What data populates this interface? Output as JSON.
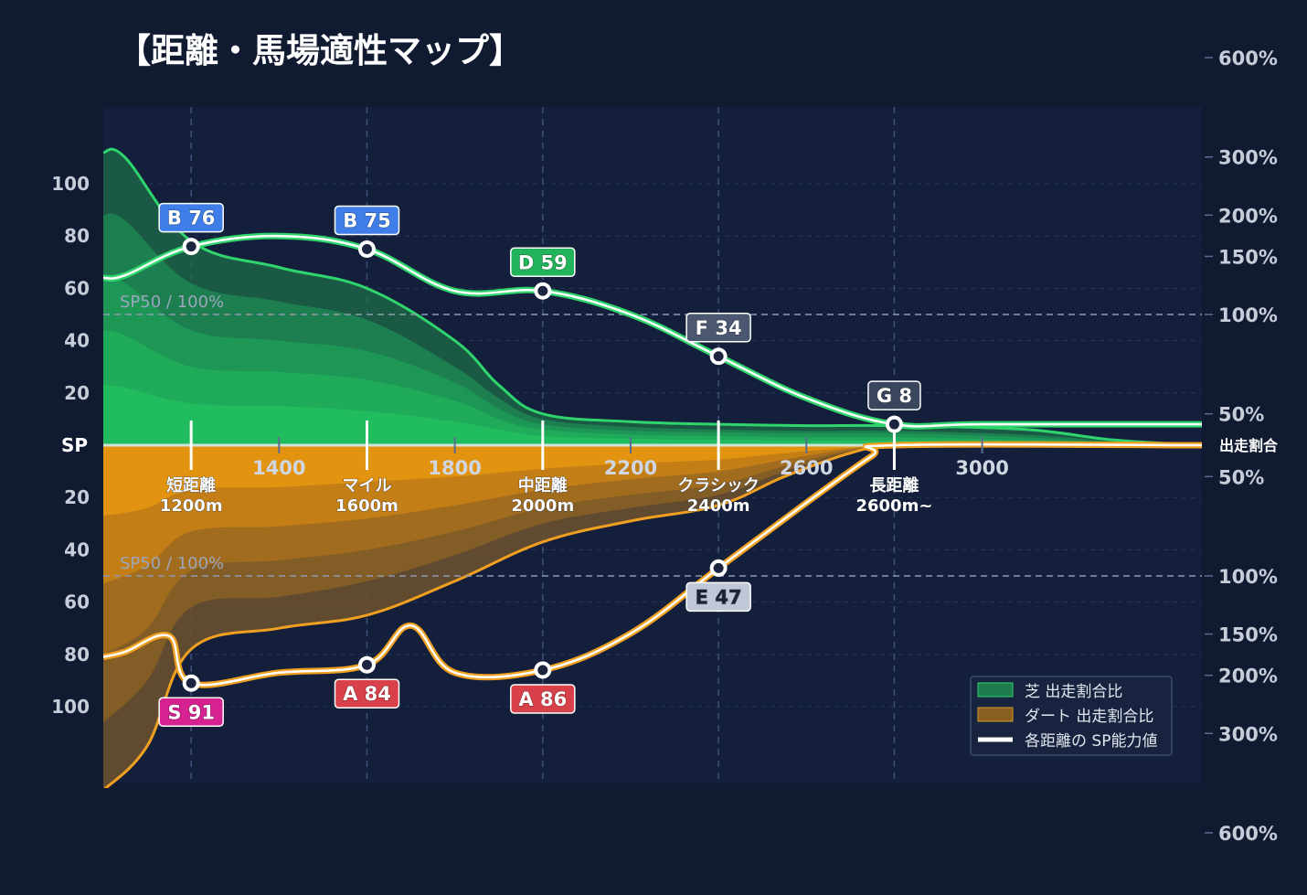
{
  "title": "【距離・馬場適性マップ】",
  "colors": {
    "background": "#101a31",
    "plot_bg": "#131f3b",
    "turf": "#20c15e",
    "turf_line": "#2fd46c",
    "dirt": "#e8960f",
    "dirt_line": "#f0a020",
    "grid": "#33456a",
    "axis_text": "#c6cdd9"
  },
  "chart_data": {
    "type": "area",
    "title": "【距離・馬場適性マップ】",
    "x_range": [
      1000,
      3500
    ],
    "x_ticks": [
      1400,
      1800,
      2200,
      2600,
      3000
    ],
    "x_tick_labels": [
      "1400",
      "1800",
      "2200",
      "2600",
      "3000"
    ],
    "left_axis": {
      "upper_labels": [
        100,
        80,
        60,
        40,
        20
      ],
      "center_label": "SP",
      "lower_labels": [
        20,
        40,
        60,
        80,
        100
      ],
      "range_upper": [
        0,
        100
      ],
      "range_lower": [
        0,
        100
      ]
    },
    "right_axis": {
      "center_label": "出走割合",
      "upper_labels": [
        "600%",
        "300%",
        "200%",
        "150%",
        "100%",
        "50%"
      ],
      "upper_values": [
        600,
        300,
        200,
        150,
        100,
        50
      ],
      "lower_labels": [
        "50%",
        "100%",
        "150%",
        "200%",
        "300%",
        "600%"
      ],
      "lower_values": [
        50,
        100,
        150,
        200,
        300,
        600
      ]
    },
    "reference_lines": [
      {
        "label": "SP50 / 100%",
        "side": "turf",
        "value": 50
      },
      {
        "label": "SP50 / 100%",
        "side": "dirt",
        "value": 50
      }
    ],
    "categories": [
      {
        "label": "短距離",
        "sub": "1200m",
        "x": 1200
      },
      {
        "label": "マイル",
        "sub": "1600m",
        "x": 1600
      },
      {
        "label": "中距離",
        "sub": "2000m",
        "x": 2000
      },
      {
        "label": "クラシック",
        "sub": "2400m",
        "x": 2400
      },
      {
        "label": "長距離",
        "sub": "2600m~",
        "x": 2800
      }
    ],
    "series": [
      {
        "name": "芝 出走割合比",
        "side": "turf",
        "x": [
          1000,
          1050,
          1200,
          1400,
          1600,
          1800,
          1900,
          2000,
          2200,
          2400,
          2600,
          2800,
          3100,
          3300,
          3500
        ],
        "outer": [
          112,
          110,
          78,
          68,
          60,
          40,
          23,
          12,
          9,
          8,
          7.5,
          7.5,
          6,
          2,
          0
        ],
        "layers": [
          [
            88,
            86,
            62,
            55,
            48,
            30,
            18,
            10,
            7,
            6,
            5.5,
            5.5,
            4,
            1.5,
            0
          ],
          [
            65,
            62,
            44,
            40,
            36,
            24,
            14,
            8,
            5.5,
            5,
            4.5,
            4.5,
            3,
            1,
            0
          ],
          [
            44,
            42,
            30,
            28,
            25,
            17,
            10,
            6,
            4,
            3.5,
            3,
            3,
            2,
            0.8,
            0
          ],
          [
            23,
            22,
            16,
            15,
            13,
            9,
            6,
            3.5,
            2.5,
            2,
            1.8,
            1.8,
            1.2,
            0.5,
            0
          ]
        ]
      },
      {
        "name": "ダート 出走割合比",
        "side": "dirt",
        "x": [
          1000,
          1100,
          1200,
          1400,
          1600,
          1800,
          2000,
          2200,
          2400,
          2550,
          2700,
          2800,
          3000,
          3500
        ],
        "outer": [
          132,
          115,
          78,
          70,
          65,
          52,
          37,
          29,
          23,
          12,
          3,
          0,
          0,
          0
        ],
        "layers": [
          [
            106,
            90,
            62,
            58,
            52,
            42,
            30,
            24,
            19,
            10,
            2.5,
            0,
            0,
            0
          ],
          [
            80,
            70,
            48,
            44,
            40,
            33,
            24,
            19,
            15,
            8,
            2,
            0,
            0,
            0
          ],
          [
            53,
            46,
            33,
            31,
            28,
            23,
            17,
            13,
            10,
            5.5,
            1.5,
            0,
            0,
            0
          ],
          [
            27,
            24,
            17,
            16,
            14,
            12,
            9,
            7,
            5.5,
            3,
            1,
            0,
            0,
            0
          ]
        ]
      },
      {
        "name": "各距離の SP能力値",
        "side": "turf",
        "x": [
          1000,
          1050,
          1200,
          1400,
          1600,
          1800,
          2000,
          2200,
          2400,
          2600,
          2800,
          3000,
          3500
        ],
        "values": [
          64,
          65,
          76,
          80,
          75,
          59,
          59,
          50,
          34,
          18,
          8,
          8,
          8
        ]
      },
      {
        "name": "各距離の SP能力値 (ダート)",
        "side": "dirt",
        "x": [
          1000,
          1050,
          1150,
          1200,
          1400,
          1600,
          1700,
          1800,
          2000,
          2200,
          2400,
          2600,
          2750,
          2800,
          3500
        ],
        "values": [
          81,
          79,
          73,
          91,
          87,
          84,
          69,
          87,
          86,
          72,
          47,
          22,
          4,
          0,
          0
        ]
      }
    ],
    "markers": [
      {
        "side": "turf",
        "x": 1200,
        "value": 76,
        "grade": "B",
        "label": "B 76",
        "color": "#3f7ee8",
        "text_color": "#ffffff",
        "pos": "above"
      },
      {
        "side": "turf",
        "x": 1600,
        "value": 75,
        "grade": "B",
        "label": "B 75",
        "color": "#3f7ee8",
        "text_color": "#ffffff",
        "pos": "above"
      },
      {
        "side": "turf",
        "x": 2000,
        "value": 59,
        "grade": "D",
        "label": "D 59",
        "color": "#22b45a",
        "text_color": "#ffffff",
        "pos": "above"
      },
      {
        "side": "turf",
        "x": 2400,
        "value": 34,
        "grade": "F",
        "label": "F 34",
        "color": "#4c5872",
        "text_color": "#ffffff",
        "pos": "above"
      },
      {
        "side": "turf",
        "x": 2800,
        "value": 8,
        "grade": "G",
        "label": "G 8",
        "color": "#3a465e",
        "text_color": "#ffffff",
        "pos": "above"
      },
      {
        "side": "dirt",
        "x": 1200,
        "value": 91,
        "grade": "S",
        "label": "S 91",
        "color": "#d62290",
        "text_color": "#ffffff",
        "pos": "below"
      },
      {
        "side": "dirt",
        "x": 1600,
        "value": 84,
        "grade": "A",
        "label": "A 84",
        "color": "#d9414a",
        "text_color": "#ffffff",
        "pos": "below"
      },
      {
        "side": "dirt",
        "x": 2000,
        "value": 86,
        "grade": "A",
        "label": "A 86",
        "color": "#d9414a",
        "text_color": "#ffffff",
        "pos": "below"
      },
      {
        "side": "dirt",
        "x": 2400,
        "value": 47,
        "grade": "E",
        "label": "E 47",
        "color": "#c0c8d8",
        "text_color": "#1a2238",
        "pos": "below"
      }
    ],
    "legend": {
      "position": "bottom-right",
      "items": [
        {
          "label": "芝 出走割合比",
          "color": "#1f7a4c",
          "kind": "area"
        },
        {
          "label": "ダート 出走割合比",
          "color": "#8a5e1f",
          "kind": "area"
        },
        {
          "label": "各距離の SP能力値",
          "color": "#ffffff",
          "kind": "line"
        }
      ]
    },
    "grid": true
  }
}
